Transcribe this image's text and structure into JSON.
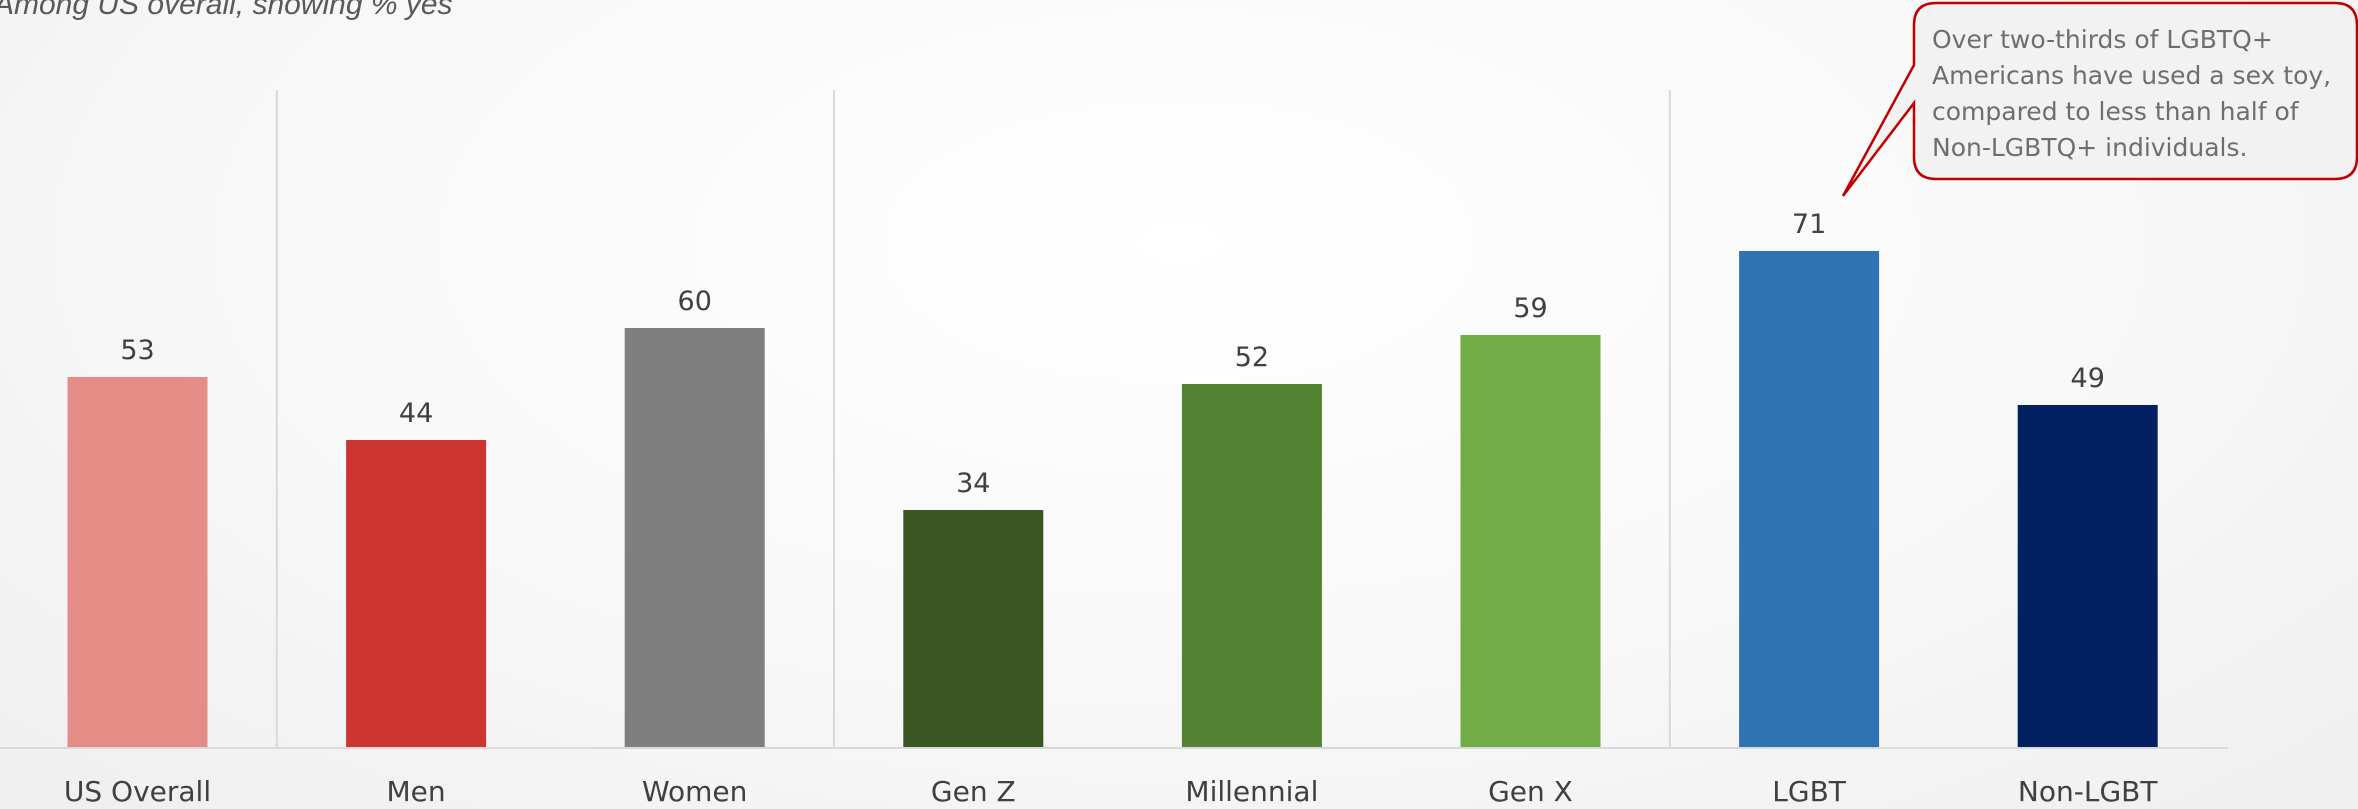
{
  "subtitle": "Among US overall, showing % yes",
  "annotation": "Over two-thirds of LGBTQ+ Americans have used a sex toy, compared to less than half of Non-LGBTQ+ individuals.",
  "colors": {
    "callout_border": "#c00000",
    "axis": "#d9d9d9",
    "separator": "#d9d9d9"
  },
  "chart_data": {
    "type": "bar",
    "title": "",
    "xlabel": "",
    "ylabel": "",
    "ylim": [
      0,
      100
    ],
    "grid": false,
    "categories": [
      "US Overall",
      "Men",
      "Women",
      "Gen Z",
      "Millennial",
      "Gen X",
      "LGBT",
      "Non-LGBT"
    ],
    "values": [
      53,
      44,
      60,
      34,
      52,
      59,
      71,
      49
    ],
    "colors": [
      "#e68c86",
      "#cc3530",
      "#7f7f7f",
      "#3a5723",
      "#538233",
      "#71ac47",
      "#2e74b5",
      "#032060"
    ],
    "groups": [
      [
        "US Overall"
      ],
      [
        "Men",
        "Women"
      ],
      [
        "Gen Z",
        "Millennial",
        "Gen X"
      ],
      [
        "LGBT",
        "Non-LGBT"
      ]
    ]
  }
}
